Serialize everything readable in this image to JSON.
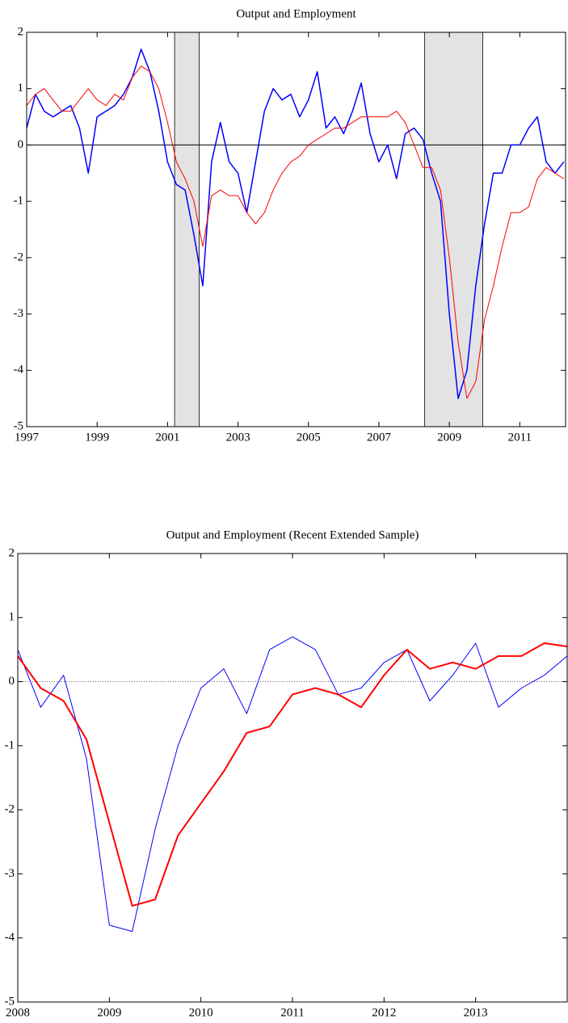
{
  "chart_data": [
    {
      "type": "line",
      "title": "Output and Employment",
      "xlim": [
        1997,
        2012.3
      ],
      "xticks": [
        1997,
        1999,
        2001,
        2003,
        2005,
        2007,
        2009,
        2011
      ],
      "ylim": [
        -5,
        2
      ],
      "yticks": [
        -5,
        -4,
        -3,
        -2,
        -1,
        0,
        1,
        2
      ],
      "zero_line": "solid",
      "shaded_periods": [
        [
          2001.2,
          2001.9
        ],
        [
          2008.3,
          2009.95
        ]
      ],
      "x": [
        1997.0,
        1997.25,
        1997.5,
        1997.75,
        1998.0,
        1998.25,
        1998.5,
        1998.75,
        1999.0,
        1999.25,
        1999.5,
        1999.75,
        2000.0,
        2000.25,
        2000.5,
        2000.75,
        2001.0,
        2001.25,
        2001.5,
        2001.75,
        2002.0,
        2002.25,
        2002.5,
        2002.75,
        2003.0,
        2003.25,
        2003.5,
        2003.75,
        2004.0,
        2004.25,
        2004.5,
        2004.75,
        2005.0,
        2005.25,
        2005.5,
        2005.75,
        2006.0,
        2006.25,
        2006.5,
        2006.75,
        2007.0,
        2007.25,
        2007.5,
        2007.75,
        2008.0,
        2008.25,
        2008.5,
        2008.75,
        2009.0,
        2009.25,
        2009.5,
        2009.75,
        2010.0,
        2010.25,
        2010.5,
        2010.75,
        2011.0,
        2011.25,
        2011.5,
        2011.75,
        2012.0,
        2012.25
      ],
      "series": [
        {
          "color": "#0000ff",
          "values": [
            0.3,
            0.9,
            0.6,
            0.5,
            0.6,
            0.7,
            0.3,
            -0.5,
            0.5,
            0.6,
            0.7,
            0.9,
            1.2,
            1.7,
            1.3,
            0.6,
            -0.3,
            -0.7,
            -0.8,
            -1.6,
            -2.5,
            -0.3,
            0.4,
            -0.3,
            -0.5,
            -1.2,
            -0.3,
            0.6,
            1.0,
            0.8,
            0.9,
            0.5,
            0.8,
            1.3,
            0.3,
            0.5,
            0.2,
            0.6,
            1.1,
            0.2,
            -0.3,
            0.0,
            -0.6,
            0.2,
            0.3,
            0.1,
            -0.5,
            -1.0,
            -3.0,
            -4.5,
            -4.0,
            -2.5,
            -1.4,
            -0.5,
            -0.5,
            0.0,
            0.0,
            0.3,
            0.5,
            -0.3,
            -0.5,
            -0.3
          ]
        },
        {
          "color": "#ff0000",
          "values": [
            0.7,
            0.9,
            1.0,
            0.8,
            0.6,
            0.6,
            0.8,
            1.0,
            0.8,
            0.7,
            0.9,
            0.8,
            1.2,
            1.4,
            1.3,
            1.0,
            0.4,
            -0.3,
            -0.6,
            -1.0,
            -1.8,
            -0.9,
            -0.8,
            -0.9,
            -0.9,
            -1.2,
            -1.4,
            -1.2,
            -0.8,
            -0.5,
            -0.3,
            -0.2,
            0.0,
            0.1,
            0.2,
            0.3,
            0.3,
            0.4,
            0.5,
            0.5,
            0.5,
            0.5,
            0.6,
            0.4,
            0.0,
            -0.4,
            -0.4,
            -0.8,
            -2.0,
            -3.5,
            -4.5,
            -4.2,
            -3.1,
            -2.5,
            -1.8,
            -1.2,
            -1.2,
            -1.1,
            -0.6,
            -0.4,
            -0.5,
            -0.6
          ]
        }
      ]
    },
    {
      "type": "line",
      "title": "Output and Employment (Recent Extended Sample)",
      "xlim": [
        2008,
        2014
      ],
      "xticks": [
        2008,
        2009,
        2010,
        2011,
        2012,
        2013
      ],
      "ylim": [
        -5,
        2
      ],
      "yticks": [
        -5,
        -4,
        -3,
        -2,
        -1,
        0,
        1,
        2
      ],
      "zero_line": "dotted",
      "x": [
        2008.0,
        2008.25,
        2008.5,
        2008.75,
        2009.0,
        2009.25,
        2009.5,
        2009.75,
        2010.0,
        2010.25,
        2010.5,
        2010.75,
        2011.0,
        2011.25,
        2011.5,
        2011.75,
        2012.0,
        2012.25,
        2012.5,
        2012.75,
        2013.0,
        2013.25,
        2013.5,
        2013.75,
        2014.0
      ],
      "series": [
        {
          "color": "#0000ff",
          "values": [
            0.5,
            -0.4,
            0.1,
            -1.2,
            -3.8,
            -3.9,
            -2.3,
            -1.0,
            -0.1,
            0.2,
            -0.5,
            0.5,
            0.7,
            0.5,
            -0.2,
            -0.1,
            0.3,
            0.5,
            -0.3,
            0.1,
            0.6,
            -0.4,
            -0.1,
            0.1,
            0.4
          ]
        },
        {
          "color": "#ff0000",
          "values": [
            0.4,
            -0.1,
            -0.3,
            -0.9,
            -2.2,
            -3.5,
            -3.4,
            -2.4,
            -1.9,
            -1.4,
            -0.8,
            -0.7,
            -0.2,
            -0.1,
            -0.2,
            -0.4,
            0.1,
            0.5,
            0.2,
            0.3,
            0.2,
            0.4,
            0.4,
            0.6,
            0.55
          ]
        }
      ]
    }
  ]
}
